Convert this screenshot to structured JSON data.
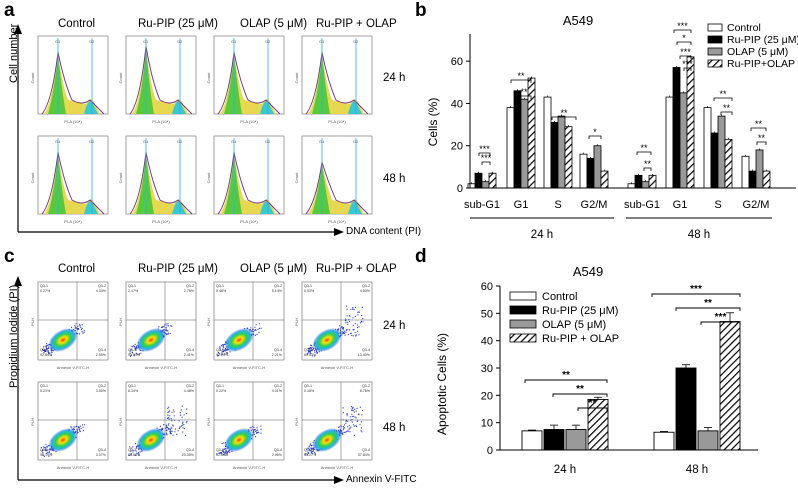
{
  "panels": {
    "a": "a",
    "b": "b",
    "c": "c",
    "d": "d"
  },
  "panel_a": {
    "headers": [
      "Control",
      "Ru-PIP (25 μM)",
      "OLAP (5 μM)",
      "Ru-PIP + OLAP"
    ],
    "rows": [
      "24 h",
      "48 h"
    ],
    "y_axis": "Cell number",
    "x_axis": "DNA content (PI)",
    "tile_ylabel": "Count",
    "tile_xlabel": "PI-A (10⁴)",
    "gate_g1": "G1",
    "gate_g2": "G2"
  },
  "panel_c": {
    "headers": [
      "Control",
      "Ru-PIP (25 μM)",
      "OLAP (5 μM)",
      "Ru-PIP + OLAP"
    ],
    "rows": [
      "24 h",
      "48 h"
    ],
    "y_axis": "Propidium Iodide (PI)",
    "x_axis": "Annexin V-FITC",
    "tile_ylabel": "PI-H",
    "tile_xlabel": "Annexin V-FITC-H",
    "quadrant_names": [
      "Q3-1",
      "Q3-2",
      "Q3-3",
      "Q3-4"
    ],
    "quadrants": [
      [
        [
          "0.27%",
          "4.34%",
          "92.84%",
          "2.55%"
        ],
        [
          "2.17%",
          "2.78%",
          "92.65%",
          "2.41%"
        ],
        [
          "0.46%",
          "5.14%",
          "92.20%",
          "2.21%"
        ],
        [
          "0.53%",
          "4.50%",
          "81.57%",
          "13.40%"
        ]
      ],
      [
        [
          "0.21%",
          "3.55%",
          "93.19%",
          "3.07%"
        ],
        [
          "6.34%",
          "4.48%",
          "88.83%",
          "20.35%"
        ],
        [
          "0.22%",
          "4.01%",
          "92.80%",
          "2.96%"
        ],
        [
          "0.18%",
          "8.76%",
          "53.27%",
          "37.84%"
        ]
      ]
    ]
  },
  "chart_data": [
    {
      "type": "bar",
      "title": "A549",
      "ylabel": "Cells (%)",
      "ylim": [
        0,
        70
      ],
      "yticks": [
        "0",
        "20",
        "40",
        "60"
      ],
      "categories": [
        "sub-G1",
        "G1",
        "S",
        "G2/M",
        "sub-G1",
        "G1",
        "S",
        "G2/M"
      ],
      "groups": [
        "24 h",
        "48 h"
      ],
      "legend": [
        "Control",
        "Ru-PIP (25 μM)",
        "OLAP (5 μM)",
        "Ru-PIP+OLAP"
      ],
      "series": [
        {
          "name": "Control",
          "values": [
            2,
            38,
            43,
            16,
            2,
            43,
            38,
            15
          ]
        },
        {
          "name": "Ru-PIP (25 μM)",
          "values": [
            7,
            46,
            31,
            14,
            6,
            57,
            26,
            8
          ]
        },
        {
          "name": "OLAP (5 μM)",
          "values": [
            3,
            42,
            34,
            20,
            3,
            45,
            34,
            18
          ]
        },
        {
          "name": "Ru-PIP+OLAP",
          "values": [
            7,
            52,
            29,
            8,
            6,
            62,
            23,
            8
          ]
        }
      ],
      "significance": [
        "***",
        "***",
        "**",
        "**",
        "**",
        "*",
        "**",
        "**",
        "***",
        "*",
        "***",
        "***",
        "**",
        "**",
        "**",
        "**"
      ]
    },
    {
      "type": "bar",
      "title": "A549",
      "ylabel": "Apoptotic Cells (%)",
      "ylim": [
        0,
        60
      ],
      "yticks": [
        "0",
        "10",
        "20",
        "30",
        "40",
        "50",
        "60"
      ],
      "categories": [
        "24 h",
        "48 h"
      ],
      "legend": [
        "Control",
        "Ru-PIP (25 μM)",
        "OLAP (5 μM)",
        "Ru-PIP + OLAP"
      ],
      "series": [
        {
          "name": "Control",
          "values": [
            7,
            6.5
          ]
        },
        {
          "name": "Ru-PIP (25 μM)",
          "values": [
            7.5,
            30
          ]
        },
        {
          "name": "OLAP (5 μM)",
          "values": [
            7.5,
            7
          ]
        },
        {
          "name": "Ru-PIP + OLAP",
          "values": [
            18.5,
            47
          ]
        }
      ],
      "significance": [
        "**",
        "**",
        "**",
        "***",
        "**",
        "***"
      ]
    }
  ]
}
